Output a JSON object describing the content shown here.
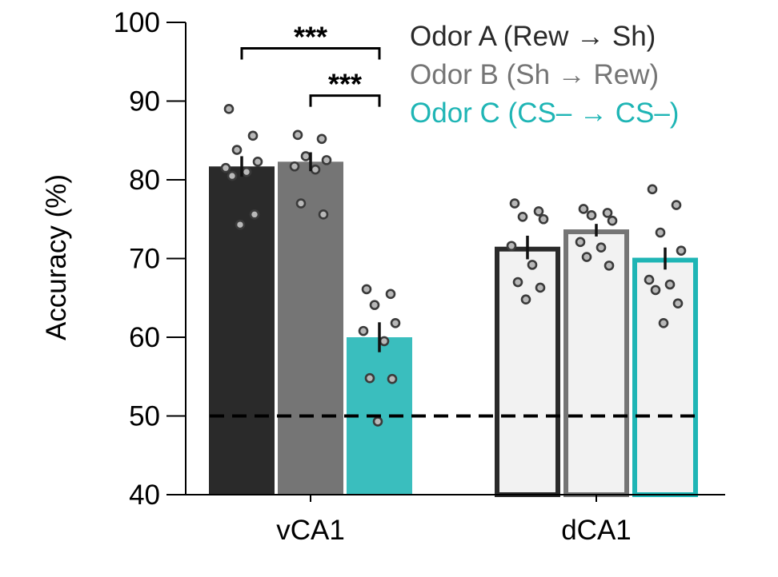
{
  "chart_data": {
    "type": "bar",
    "title": "",
    "xlabel": "",
    "ylabel": "Accuracy (%)",
    "ylim": [
      40,
      100
    ],
    "yticks": [
      40,
      50,
      60,
      70,
      80,
      90,
      100
    ],
    "grid": false,
    "legend_position": "top-right",
    "chance_level": 50,
    "categories": [
      "vCA1",
      "dCA1"
    ],
    "series": [
      {
        "name": "Odor A (Rew → Sh)",
        "color": "#2a2a2a",
        "values": [
          81.7,
          71.4
        ],
        "sem": [
          1.3,
          1.5
        ],
        "points": [
          [
            89,
            85.6,
            83.8,
            82.3,
            81.5,
            81.0,
            80.5,
            75.6,
            74.3
          ],
          [
            77,
            76,
            75.3,
            75,
            71.6,
            69.2,
            67,
            66.3,
            64.8
          ]
        ]
      },
      {
        "name": "Odor B (Sh → Rew)",
        "color": "#757575",
        "values": [
          82.3,
          73.6
        ],
        "sem": [
          1.2,
          0.8
        ],
        "points": [
          [
            85.7,
            85.2,
            83,
            82.5,
            81.7,
            81.3,
            77,
            75.6
          ],
          [
            76.3,
            75.8,
            75.5,
            74.8,
            72.1,
            71.4,
            70.2,
            69.1
          ]
        ]
      },
      {
        "name": "Odor C (CS– → CS–)",
        "color": "#1fb5b5",
        "values": [
          60.0,
          70.0
        ],
        "sem": [
          1.9,
          1.4
        ],
        "points": [
          [
            66.1,
            65.5,
            64.1,
            61.8,
            60.8,
            59.5,
            54.8,
            54.7,
            49.3
          ],
          [
            78.8,
            76.8,
            73.3,
            71,
            67.3,
            66.7,
            66,
            64.3,
            61.8
          ]
        ]
      }
    ],
    "significance": [
      {
        "label": "***",
        "from_category": "vCA1",
        "from_series": 0,
        "to_series": 2,
        "y": 96.7
      },
      {
        "label": "***",
        "from_category": "vCA1",
        "from_series": 1,
        "to_series": 2,
        "y": 90.7
      }
    ]
  }
}
